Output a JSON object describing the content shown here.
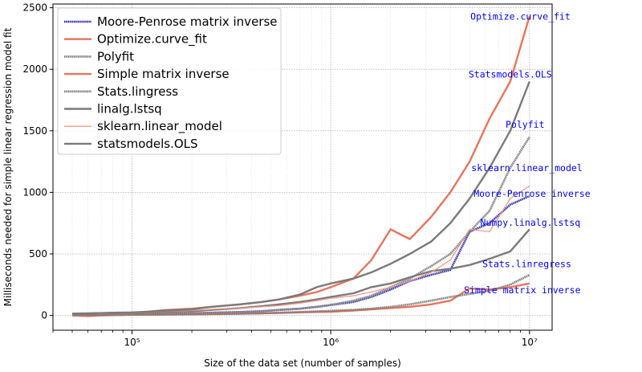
{
  "chart_data": {
    "type": "line",
    "title": "",
    "xlabel": "Size of the data set (number of samples)",
    "ylabel": "Milliseconds needed for simple linear regression model fit",
    "xscale": "log",
    "xlim": [
      40000,
      13000000
    ],
    "ylim": [
      -120,
      2530
    ],
    "yticks": [
      0,
      500,
      1000,
      1500,
      2000,
      2500
    ],
    "yticklabels": [
      "0",
      "500",
      "1000",
      "1500",
      "2000",
      "2500"
    ],
    "xticklabels": [
      "10⁵",
      "10⁶",
      "10⁷"
    ],
    "grid": true,
    "legend_position": "upper-left",
    "x": [
      50000,
      60000,
      70000,
      80000,
      100000,
      120000,
      150000,
      200000,
      250000,
      350000,
      450000,
      550000,
      700000,
      850000,
      1000000,
      1300000,
      1600000,
      2000000,
      2500000,
      3200000,
      4000000,
      5000000,
      6300000,
      8000000,
      10000000
    ],
    "series": [
      {
        "name": "Moore-Penrose matrix inverse",
        "color": "#2a2aa8",
        "style": "dotted-band",
        "values": [
          5,
          8,
          6,
          7,
          9,
          12,
          14,
          18,
          22,
          28,
          35,
          45,
          55,
          70,
          85,
          110,
          150,
          210,
          280,
          330,
          370,
          680,
          750,
          900,
          970
        ]
      },
      {
        "name": "Optimize.curve_fit",
        "color": "#e8745c",
        "style": "solid-thick",
        "values": [
          10,
          15,
          12,
          18,
          20,
          30,
          45,
          55,
          70,
          90,
          110,
          130,
          160,
          190,
          230,
          300,
          450,
          700,
          620,
          800,
          1000,
          1250,
          1600,
          1900,
          2430
        ]
      },
      {
        "name": "Polyfit",
        "color": "#7a7a7a",
        "style": "dotted-band",
        "values": [
          5,
          6,
          6,
          7,
          8,
          9,
          12,
          16,
          20,
          26,
          35,
          45,
          55,
          70,
          85,
          120,
          160,
          230,
          300,
          400,
          500,
          680,
          850,
          1200,
          1450
        ]
      },
      {
        "name": "Simple matrix inverse",
        "color": "#e8745c",
        "style": "solid-thick",
        "values": [
          0,
          -5,
          0,
          2,
          5,
          5,
          8,
          10,
          12,
          15,
          18,
          20,
          25,
          28,
          30,
          40,
          50,
          60,
          70,
          90,
          120,
          220,
          210,
          230,
          260
        ]
      },
      {
        "name": "Stats.lingress",
        "color": "#7a7a7a",
        "style": "dotted-band",
        "values": [
          2,
          3,
          3,
          4,
          5,
          6,
          7,
          9,
          11,
          14,
          18,
          22,
          28,
          33,
          38,
          45,
          55,
          70,
          90,
          120,
          150,
          175,
          200,
          250,
          330
        ]
      },
      {
        "name": "linalg.lstsq",
        "color": "#7a7a7a",
        "style": "solid-thick",
        "values": [
          10,
          12,
          15,
          15,
          18,
          25,
          30,
          35,
          45,
          60,
          75,
          90,
          110,
          130,
          150,
          180,
          230,
          260,
          310,
          360,
          380,
          410,
          460,
          520,
          700
        ]
      },
      {
        "name": "sklearn.linear_model",
        "color": "#f29a8a",
        "style": "solid-thin",
        "values": [
          12,
          15,
          15,
          18,
          20,
          25,
          35,
          40,
          50,
          60,
          70,
          80,
          100,
          120,
          140,
          160,
          190,
          230,
          280,
          350,
          450,
          700,
          680,
          950,
          1050
        ]
      },
      {
        "name": "statsmodels.OLS",
        "color": "#7a7a7a",
        "style": "solid-thick",
        "values": [
          15,
          18,
          20,
          22,
          25,
          30,
          40,
          50,
          70,
          90,
          110,
          130,
          170,
          230,
          260,
          300,
          350,
          420,
          500,
          600,
          750,
          950,
          1200,
          1500,
          1900
        ]
      }
    ],
    "annotations": [
      {
        "text": "Optimize.curve_fit",
        "x": 9000000,
        "y": 2430
      },
      {
        "text": "Statsmodels.OLS",
        "x": 8000000,
        "y": 1960
      },
      {
        "text": "Polyfit",
        "x": 9500000,
        "y": 1550
      },
      {
        "text": "sklearn.linear_model",
        "x": 9700000,
        "y": 1200
      },
      {
        "text": "Moore-Penrose inverse",
        "x": 10300000,
        "y": 990
      },
      {
        "text": "Numpy.linalg.lstsq",
        "x": 10100000,
        "y": 755
      },
      {
        "text": "Stats.linregress",
        "x": 9700000,
        "y": 420
      },
      {
        "text": "Simple matrix inverse",
        "x": 9200000,
        "y": 205
      }
    ]
  }
}
